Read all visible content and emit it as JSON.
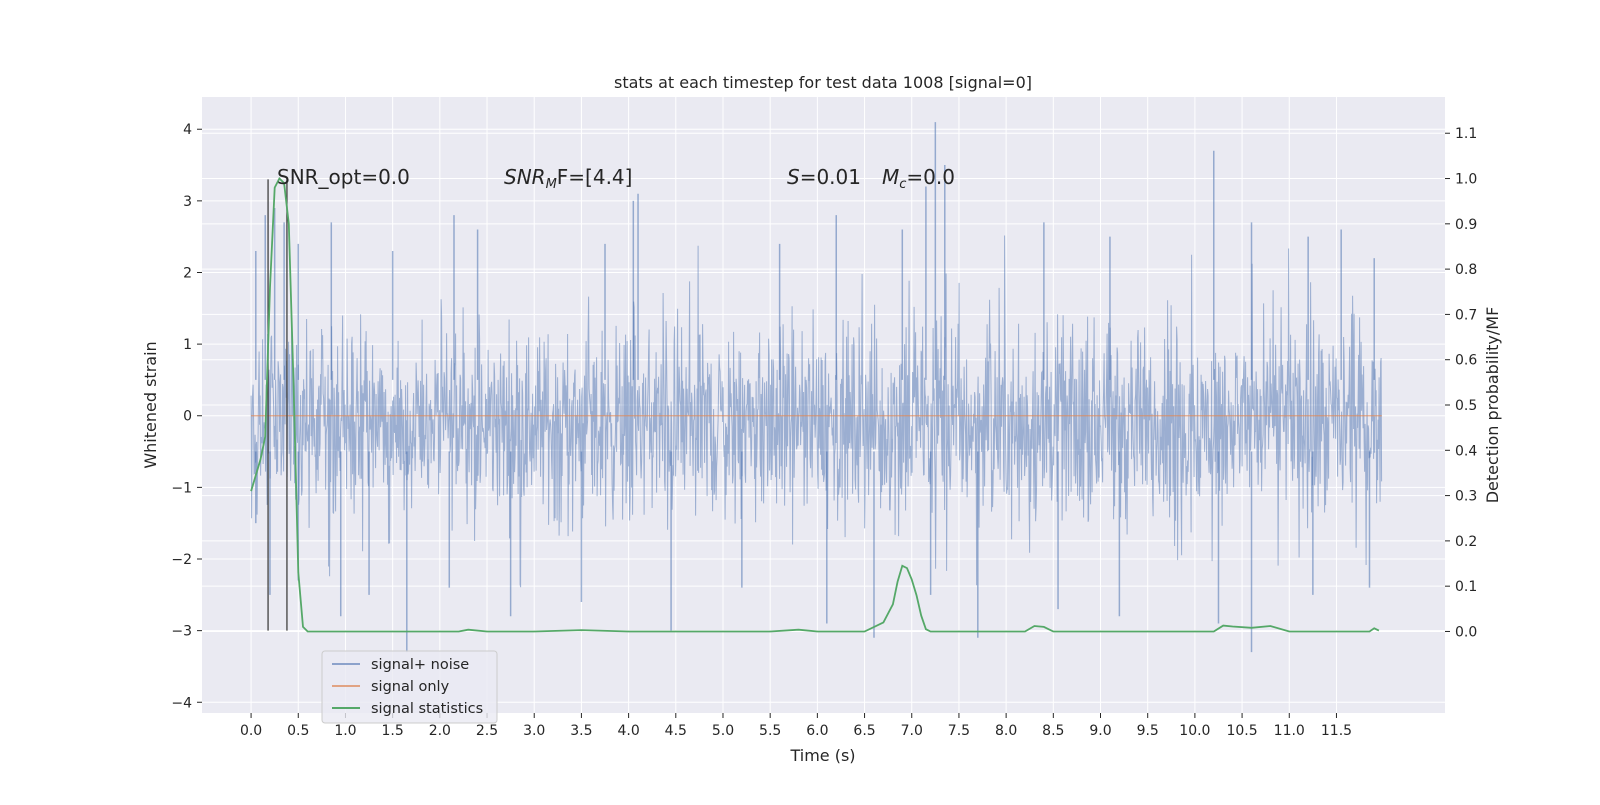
{
  "chart_data": {
    "type": "line",
    "title": "stats at each timestep for test data 1008 [signal=0]",
    "xlabel": "Time (s)",
    "ylabel": "Whitened strain",
    "y2label": "Detection probability/MF",
    "xlim": [
      -0.52,
      12.65
    ],
    "ylim": [
      -4.15,
      4.45
    ],
    "y2lim": [
      -0.18,
      1.18
    ],
    "xticks": [
      0.0,
      0.5,
      1.0,
      1.5,
      2.0,
      2.5,
      3.0,
      3.5,
      4.0,
      4.5,
      5.0,
      5.5,
      6.0,
      6.5,
      7.0,
      7.5,
      8.0,
      8.5,
      9.0,
      9.5,
      10.0,
      10.5,
      11.0,
      11.5
    ],
    "xtick_labels": [
      "0.0",
      "0.5",
      "1.0",
      "1.5",
      "2.0",
      "2.5",
      "3.0",
      "3.5",
      "4.0",
      "4.5",
      "5.0",
      "5.5",
      "6.0",
      "6.5",
      "7.0",
      "7.5",
      "8.0",
      "8.5",
      "9.0",
      "9.5",
      "10.0",
      "10.5",
      "11.0",
      "11.5"
    ],
    "yticks": [
      -4,
      -3,
      -2,
      -1,
      0,
      1,
      2,
      3,
      4
    ],
    "ytick_labels": [
      "−4",
      "−3",
      "−2",
      "−1",
      "0",
      "1",
      "2",
      "3",
      "4"
    ],
    "y2ticks": [
      0.0,
      0.1,
      0.2,
      0.3,
      0.4,
      0.5,
      0.6,
      0.7,
      0.8,
      0.9,
      1.0,
      1.1
    ],
    "y2tick_labels": [
      "0.0",
      "0.1",
      "0.2",
      "0.3",
      "0.4",
      "0.5",
      "0.6",
      "0.7",
      "0.8",
      "0.9",
      "1.0",
      "1.1"
    ],
    "grid": true,
    "legend_position": "lower-left",
    "colors": {
      "background": "#eaeaf2",
      "grid": "#ffffff",
      "signal_noise": "#4c72b0",
      "signal_only": "#dd8452",
      "statistics": "#55a868",
      "markers": "#404040"
    },
    "annotations": {
      "snr_opt": "SNR_opt=0.0",
      "snr_mf_main": "SNR",
      "snr_mf_sub": "M",
      "snr_mf_rest": "F=[4.4]",
      "s_main": "S",
      "s_rest": "=0.01",
      "mc_main": "M",
      "mc_sub": "c",
      "mc_rest": "=0.0"
    },
    "signal_noise": {
      "name": "signal+ noise",
      "t_start": 0.0,
      "t_end": 11.98,
      "typical_range": [
        -1.6,
        1.4
      ],
      "peak_max": [
        [
          0.05,
          2.3
        ],
        [
          0.15,
          2.8
        ],
        [
          0.25,
          2.9
        ],
        [
          0.35,
          2.7
        ],
        [
          0.5,
          2.4
        ],
        [
          0.85,
          2.7
        ],
        [
          1.5,
          2.3
        ],
        [
          2.15,
          2.8
        ],
        [
          2.4,
          2.6
        ],
        [
          3.75,
          2.4
        ],
        [
          4.05,
          3.0
        ],
        [
          4.1,
          3.1
        ],
        [
          5.6,
          2.4
        ],
        [
          6.2,
          2.8
        ],
        [
          6.9,
          2.6
        ],
        [
          7.15,
          3.2
        ],
        [
          7.25,
          4.1
        ],
        [
          7.35,
          3.5
        ],
        [
          8.4,
          2.7
        ],
        [
          9.1,
          2.5
        ],
        [
          10.2,
          3.7
        ],
        [
          10.6,
          2.7
        ],
        [
          11.2,
          2.5
        ],
        [
          11.55,
          2.6
        ],
        [
          11.9,
          2.2
        ]
      ],
      "peak_min": [
        [
          0.05,
          -1.5
        ],
        [
          0.2,
          -2.5
        ],
        [
          0.5,
          -2.3
        ],
        [
          0.95,
          -2.8
        ],
        [
          1.25,
          -2.5
        ],
        [
          1.65,
          -3.3
        ],
        [
          2.1,
          -2.4
        ],
        [
          2.75,
          -2.8
        ],
        [
          3.5,
          -2.6
        ],
        [
          4.45,
          -3.0
        ],
        [
          5.2,
          -2.4
        ],
        [
          6.1,
          -2.9
        ],
        [
          6.6,
          -3.1
        ],
        [
          7.2,
          -2.5
        ],
        [
          7.7,
          -3.1
        ],
        [
          8.55,
          -2.7
        ],
        [
          9.2,
          -2.8
        ],
        [
          10.25,
          -2.9
        ],
        [
          10.6,
          -3.3
        ],
        [
          11.25,
          -2.5
        ],
        [
          11.85,
          -2.4
        ]
      ]
    },
    "signal_only": {
      "name": "signal only",
      "x": [
        0.0,
        11.98
      ],
      "y": [
        0.0,
        0.0
      ]
    },
    "statistics": {
      "name": "signal statistics",
      "x": [
        0.0,
        0.1,
        0.15,
        0.2,
        0.25,
        0.3,
        0.35,
        0.4,
        0.45,
        0.5,
        0.55,
        0.6,
        1.0,
        2.0,
        2.1,
        2.2,
        2.3,
        2.5,
        3.0,
        3.5,
        4.0,
        5.0,
        5.5,
        5.8,
        6.0,
        6.5,
        6.7,
        6.8,
        6.85,
        6.9,
        6.95,
        7.0,
        7.05,
        7.1,
        7.15,
        7.2,
        7.3,
        7.5,
        8.0,
        8.2,
        8.3,
        8.4,
        8.5,
        9.0,
        9.5,
        10.0,
        10.2,
        10.3,
        10.4,
        10.6,
        10.8,
        11.0,
        11.5,
        11.85,
        11.9,
        11.95
      ],
      "y": [
        0.31,
        0.38,
        0.43,
        0.76,
        0.98,
        1.0,
        0.99,
        0.9,
        0.55,
        0.13,
        0.01,
        0.0,
        0.0,
        0.0,
        0.0,
        0.0,
        0.004,
        0.0,
        0.0,
        0.003,
        0.0,
        0.0,
        0.0,
        0.004,
        0.0,
        0.0,
        0.02,
        0.06,
        0.11,
        0.145,
        0.14,
        0.115,
        0.08,
        0.035,
        0.005,
        0.0,
        0.0,
        0.0,
        0.0,
        0.0,
        0.012,
        0.01,
        0.0,
        0.0,
        0.0,
        0.0,
        0.0,
        0.013,
        0.011,
        0.008,
        0.012,
        0.0,
        0.0,
        0.0,
        0.007,
        0.002
      ]
    },
    "vertical_markers": [
      0.18,
      0.38
    ],
    "vertical_marker_range": [
      -3.0,
      3.3
    ]
  }
}
